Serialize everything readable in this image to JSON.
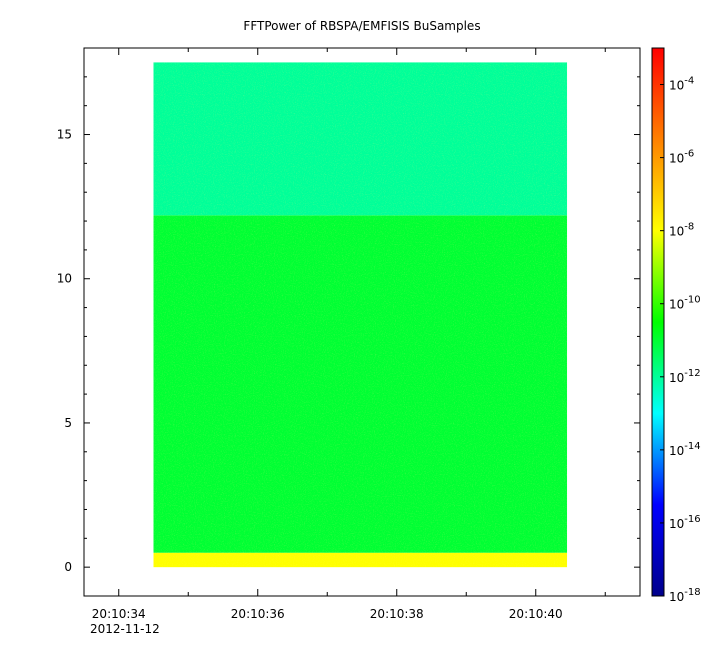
{
  "chart_data": {
    "type": "heatmap",
    "title": "FFTPower of RBSPA/EMFISIS  BuSamples",
    "xlabel": "",
    "ylabel": "",
    "date_label": "2012-11-12",
    "x_range": [
      "20:10:33.5",
      "20:10:41.5"
    ],
    "data_x_range": [
      "20:10:34.5",
      "20:10:40.45"
    ],
    "ylim": [
      -1.0,
      18.0
    ],
    "data_y_range": [
      0,
      17.5
    ],
    "y_ticks": [
      0,
      5,
      10,
      15
    ],
    "x_ticks": [
      {
        "time": "20:10:34",
        "label": "20:10:34"
      },
      {
        "time": "20:10:36",
        "label": "20:10:36"
      },
      {
        "time": "20:10:38",
        "label": "20:10:38"
      },
      {
        "time": "20:10:40",
        "label": "20:10:40"
      }
    ],
    "x_minor_ticks": [
      "20:10:35",
      "20:10:37",
      "20:10:39",
      "20:10:41"
    ],
    "colorbar": {
      "scale": "log",
      "range": [
        1e-18,
        0.001
      ],
      "tick_values": [
        1e-18,
        1e-16,
        1e-14,
        1e-12,
        1e-10,
        1e-08,
        1e-06,
        0.0001
      ],
      "tick_labels": [
        {
          "base": "10",
          "exp": "-18"
        },
        {
          "base": "10",
          "exp": "-16"
        },
        {
          "base": "10",
          "exp": "-14"
        },
        {
          "base": "10",
          "exp": "-12"
        },
        {
          "base": "10",
          "exp": "-10"
        },
        {
          "base": "10",
          "exp": "-8"
        },
        {
          "base": "10",
          "exp": "-6"
        },
        {
          "base": "10",
          "exp": "-4"
        }
      ],
      "colormap": [
        "#00008b",
        "#0000ff",
        "#00ffff",
        "#00ff00",
        "#ffff00",
        "#ff8000",
        "#ff0000"
      ]
    },
    "spectral_features": [
      {
        "freq_range": [
          0,
          0.5
        ],
        "power_approx": 1e-08
      },
      {
        "freq_range": [
          0.5,
          12.2
        ],
        "power_approx": 1e-11
      },
      {
        "freq_range": [
          12.2,
          17.5
        ],
        "power_approx": 1e-12
      }
    ]
  }
}
